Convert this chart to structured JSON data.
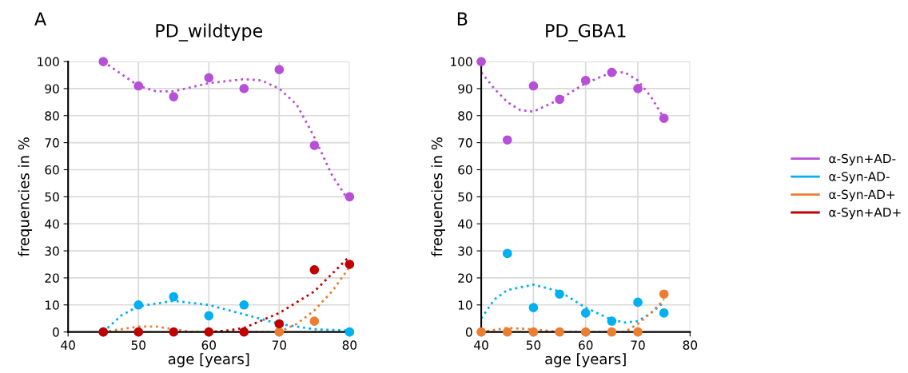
{
  "chart_data": [
    {
      "type": "scatter",
      "title": "PD_wildtype",
      "annotations": [
        "A"
      ],
      "xlabel": "age [years]",
      "ylabel": "frequencies in %",
      "xlim": [
        40,
        80
      ],
      "xticks": [
        40,
        50,
        60,
        70,
        80
      ],
      "ylim": [
        0,
        100
      ],
      "yticks": [
        0,
        10,
        20,
        30,
        40,
        50,
        60,
        70,
        80,
        90,
        100
      ],
      "grid": true,
      "legend": "right",
      "series": [
        {
          "name": "α-Syn+AD-",
          "color": "#b84fd8",
          "marker": "circle",
          "x": [
            45,
            50,
            55,
            60,
            65,
            70,
            75,
            80
          ],
          "values": [
            100,
            91,
            87,
            94,
            90,
            97,
            69,
            50
          ]
        },
        {
          "type": "line",
          "line_style": "dotted",
          "color": "#b84fd8",
          "x": [
            45,
            50,
            52.5,
            55,
            60,
            65,
            67.5,
            70,
            72.5,
            75,
            77.5,
            80
          ],
          "values": [
            100,
            91,
            89,
            89,
            92,
            93.5,
            93,
            90,
            84,
            72,
            58,
            48
          ]
        },
        {
          "name": "α-Syn-AD-",
          "color": "#00b0f0",
          "marker": "circle",
          "x": [
            45,
            50,
            55,
            60,
            65,
            70,
            80
          ],
          "values": [
            0,
            10,
            13,
            6,
            10,
            null,
            0
          ]
        },
        {
          "type": "line",
          "line_style": "dotted",
          "color": "#00b0f0",
          "x": [
            45,
            47.5,
            50,
            55,
            60,
            65,
            70,
            75,
            80
          ],
          "values": [
            0,
            6,
            9.5,
            11.5,
            10,
            6.5,
            3,
            1,
            0.5
          ]
        },
        {
          "name": "α-Syn-AD+",
          "color": "#ed7d31",
          "marker": "circle",
          "x": [
            70,
            75
          ],
          "values": [
            0,
            4
          ]
        },
        {
          "type": "line",
          "line_style": "dotted",
          "color": "#ed7d31",
          "x": [
            45,
            50,
            52.5,
            55,
            57.5,
            70,
            72.5,
            75,
            77.5,
            80
          ],
          "values": [
            0,
            2,
            2,
            1,
            0,
            0,
            3,
            8,
            15,
            24
          ]
        },
        {
          "name": "α-Syn+AD+",
          "color": "#c00000",
          "marker": "circle",
          "x": [
            45,
            50,
            55,
            60,
            65,
            70,
            75,
            80
          ],
          "values": [
            0,
            0,
            0,
            0,
            0,
            3,
            23,
            25
          ]
        },
        {
          "type": "line",
          "line_style": "dotted",
          "color": "#c00000",
          "x": [
            60,
            62.5,
            65,
            70,
            75,
            80
          ],
          "values": [
            0,
            0.5,
            1.5,
            7,
            15,
            28
          ]
        }
      ]
    },
    {
      "type": "scatter",
      "title": "PD_GBA1",
      "annotations": [
        "B"
      ],
      "xlabel": "age [years]",
      "ylabel": "frequencies in %",
      "xlim": [
        40,
        80
      ],
      "xticks": [
        40,
        50,
        60,
        70,
        80
      ],
      "ylim": [
        0,
        100
      ],
      "yticks": [
        0,
        10,
        20,
        30,
        40,
        50,
        60,
        70,
        80,
        90,
        100
      ],
      "grid": true,
      "series": [
        {
          "color": "#00b0f0",
          "marker": "circle",
          "x": [
            45,
            50,
            55,
            60,
            65,
            70,
            75
          ],
          "values": [
            29,
            9,
            14,
            7,
            4,
            11,
            7
          ]
        },
        {
          "type": "line",
          "line_style": "dotted",
          "color": "#00b0f0",
          "x": [
            40,
            42.5,
            45,
            50,
            55,
            60,
            65,
            67.5,
            70,
            72.5,
            75
          ],
          "values": [
            5,
            12,
            15.5,
            17.5,
            15,
            9,
            4.5,
            3.5,
            4,
            7,
            11
          ]
        },
        {
          "color": "#b84fd8",
          "marker": "circle",
          "x": [
            40,
            45,
            50,
            55,
            60,
            65,
            70,
            75
          ],
          "values": [
            100,
            71,
            91,
            86,
            93,
            96,
            90,
            79
          ]
        },
        {
          "type": "line",
          "line_style": "dotted",
          "color": "#b84fd8",
          "x": [
            40,
            42.5,
            45,
            47.5,
            50,
            55,
            60,
            65,
            67.5,
            70,
            72.5,
            75
          ],
          "values": [
            96,
            90,
            85,
            82,
            81.5,
            86,
            92,
            96,
            96,
            93,
            87,
            79
          ]
        },
        {
          "color": "#ed7d31",
          "marker": "circle",
          "x": [
            40,
            45,
            50,
            55,
            60,
            65,
            70,
            75
          ],
          "values": [
            0,
            0,
            0,
            0,
            0,
            0,
            0,
            14
          ]
        },
        {
          "type": "line",
          "line_style": "dotted",
          "color": "#ed7d31",
          "x": [
            40,
            45,
            50,
            55,
            65,
            67.5,
            70,
            72.5,
            75
          ],
          "values": [
            0,
            1.5,
            1,
            0,
            0,
            0,
            3,
            7,
            12
          ]
        }
      ]
    }
  ]
}
